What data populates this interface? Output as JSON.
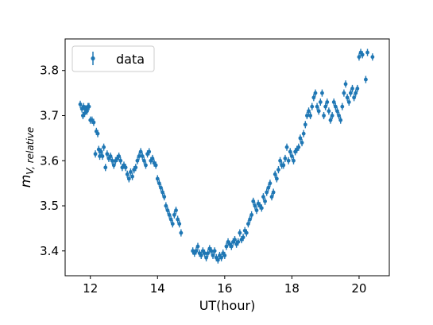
{
  "chart_data": {
    "type": "scatter",
    "xlabel": "UT(hour)",
    "ylabel_main": "m",
    "ylabel_sub": "V, relative",
    "xlim": [
      11.25,
      20.9
    ],
    "ylim": [
      3.345,
      3.87
    ],
    "xticks": [
      12,
      14,
      16,
      18,
      20
    ],
    "yticks": [
      3.4,
      3.5,
      3.6,
      3.7,
      3.8
    ],
    "xtick_labels": [
      "12",
      "14",
      "16",
      "18",
      "20"
    ],
    "ytick_labels": [
      "3.4",
      "3.5",
      "3.6",
      "3.7",
      "3.8"
    ],
    "legend": {
      "label": "data",
      "position": "top-left"
    },
    "error_bar": 0.008,
    "color": "#1f77b4",
    "series": [
      {
        "name": "data",
        "x": [
          11.7,
          11.75,
          11.78,
          11.8,
          11.83,
          11.86,
          11.9,
          11.93,
          11.96,
          12.0,
          12.05,
          12.1,
          12.15,
          12.18,
          12.22,
          12.25,
          12.28,
          12.32,
          12.36,
          12.4,
          12.45,
          12.5,
          12.55,
          12.6,
          12.65,
          12.7,
          12.75,
          12.8,
          12.85,
          12.9,
          12.95,
          13.0,
          13.05,
          13.1,
          13.15,
          13.2,
          13.25,
          13.3,
          13.35,
          13.4,
          13.45,
          13.5,
          13.55,
          13.6,
          13.65,
          13.7,
          13.75,
          13.8,
          13.85,
          13.9,
          13.95,
          14.0,
          14.05,
          14.1,
          14.15,
          14.2,
          14.25,
          14.3,
          14.35,
          14.4,
          14.45,
          14.5,
          14.55,
          14.6,
          14.65,
          14.7,
          15.05,
          15.1,
          15.15,
          15.2,
          15.25,
          15.3,
          15.35,
          15.4,
          15.45,
          15.5,
          15.55,
          15.6,
          15.65,
          15.7,
          15.75,
          15.8,
          15.85,
          15.9,
          15.95,
          16.0,
          16.05,
          16.1,
          16.15,
          16.2,
          16.25,
          16.3,
          16.35,
          16.4,
          16.45,
          16.5,
          16.55,
          16.6,
          16.65,
          16.7,
          16.75,
          16.8,
          16.85,
          16.9,
          16.95,
          17.0,
          17.05,
          17.1,
          17.15,
          17.2,
          17.25,
          17.3,
          17.35,
          17.4,
          17.45,
          17.5,
          17.55,
          17.6,
          17.65,
          17.7,
          17.75,
          17.8,
          17.85,
          17.9,
          17.95,
          18.0,
          18.05,
          18.1,
          18.15,
          18.2,
          18.25,
          18.3,
          18.35,
          18.4,
          18.45,
          18.5,
          18.55,
          18.6,
          18.65,
          18.7,
          18.75,
          18.8,
          18.85,
          18.9,
          18.95,
          19.0,
          19.05,
          19.1,
          19.15,
          19.2,
          19.25,
          19.3,
          19.35,
          19.4,
          19.45,
          19.5,
          19.55,
          19.6,
          19.65,
          19.7,
          19.75,
          19.8,
          19.85,
          19.9,
          19.95,
          20.0,
          20.05,
          20.2,
          20.25,
          20.4,
          20.1
        ],
        "y": [
          3.725,
          3.715,
          3.7,
          3.72,
          3.705,
          3.715,
          3.71,
          3.72,
          3.72,
          3.69,
          3.69,
          3.685,
          3.615,
          3.665,
          3.66,
          3.625,
          3.61,
          3.62,
          3.61,
          3.63,
          3.585,
          3.615,
          3.605,
          3.61,
          3.6,
          3.59,
          3.6,
          3.605,
          3.61,
          3.6,
          3.585,
          3.59,
          3.585,
          3.57,
          3.56,
          3.575,
          3.565,
          3.58,
          3.585,
          3.6,
          3.61,
          3.62,
          3.61,
          3.6,
          3.59,
          3.615,
          3.62,
          3.6,
          3.605,
          3.595,
          3.59,
          3.56,
          3.55,
          3.54,
          3.53,
          3.52,
          3.5,
          3.49,
          3.48,
          3.47,
          3.46,
          3.48,
          3.49,
          3.47,
          3.46,
          3.44,
          3.4,
          3.395,
          3.4,
          3.41,
          3.395,
          3.39,
          3.4,
          3.395,
          3.385,
          3.395,
          3.405,
          3.4,
          3.39,
          3.4,
          3.385,
          3.38,
          3.39,
          3.385,
          3.395,
          3.39,
          3.41,
          3.42,
          3.415,
          3.41,
          3.42,
          3.425,
          3.415,
          3.42,
          3.44,
          3.425,
          3.43,
          3.445,
          3.44,
          3.46,
          3.47,
          3.48,
          3.51,
          3.5,
          3.49,
          3.505,
          3.5,
          3.495,
          3.52,
          3.51,
          3.53,
          3.54,
          3.55,
          3.52,
          3.53,
          3.57,
          3.56,
          3.58,
          3.6,
          3.59,
          3.59,
          3.605,
          3.63,
          3.6,
          3.62,
          3.61,
          3.6,
          3.62,
          3.625,
          3.63,
          3.65,
          3.64,
          3.66,
          3.68,
          3.7,
          3.71,
          3.7,
          3.72,
          3.74,
          3.75,
          3.72,
          3.71,
          3.73,
          3.75,
          3.7,
          3.72,
          3.73,
          3.71,
          3.69,
          3.7,
          3.73,
          3.72,
          3.71,
          3.7,
          3.69,
          3.72,
          3.75,
          3.77,
          3.74,
          3.73,
          3.75,
          3.76,
          3.74,
          3.75,
          3.76,
          3.83,
          3.84,
          3.78,
          3.84,
          3.83,
          3.835
        ]
      }
    ]
  }
}
